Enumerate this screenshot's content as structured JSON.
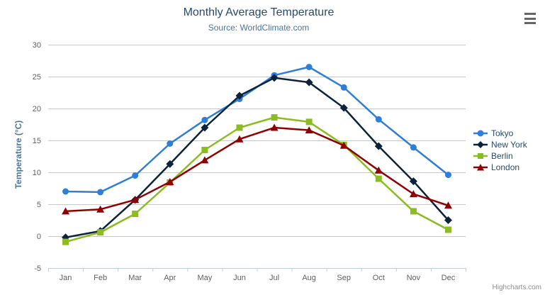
{
  "header": {
    "title": "Monthly Average Temperature",
    "subtitle": "Source: WorldClimate.com"
  },
  "credits_label": "Highcharts.com",
  "export_menu": {
    "icon": "hamburger-icon",
    "bar_color": "#666666"
  },
  "axis_colors": {
    "grid_line": "#c8c8c8",
    "axis_line": "#c0d0e0",
    "tick_label": "#606060",
    "title_text": "#274b6d",
    "subtitle_text": "#4d759e",
    "y_axis_title_text": "#4d759e",
    "legend_text": "#274b6d",
    "credits_text": "#909090"
  },
  "chart_data": {
    "type": "line",
    "title": "Monthly Average Temperature",
    "subtitle": "Source: WorldClimate.com",
    "categories": [
      "Jan",
      "Feb",
      "Mar",
      "Apr",
      "May",
      "Jun",
      "Jul",
      "Aug",
      "Sep",
      "Oct",
      "Nov",
      "Dec"
    ],
    "series": [
      {
        "name": "Tokyo",
        "color": "#2f7ed8",
        "marker": "circle",
        "values": [
          7.0,
          6.9,
          9.5,
          14.5,
          18.2,
          21.5,
          25.2,
          26.5,
          23.3,
          18.3,
          13.9,
          9.6
        ]
      },
      {
        "name": "New York",
        "color": "#0d233a",
        "marker": "diamond",
        "values": [
          -0.2,
          0.8,
          5.7,
          11.3,
          17.0,
          22.0,
          24.8,
          24.1,
          20.1,
          14.1,
          8.6,
          2.5
        ]
      },
      {
        "name": "Berlin",
        "color": "#8bbc21",
        "marker": "square",
        "values": [
          -0.9,
          0.6,
          3.5,
          8.4,
          13.5,
          17.0,
          18.6,
          17.9,
          14.3,
          9.0,
          3.9,
          1.0
        ]
      },
      {
        "name": "London",
        "color": "#910000",
        "marker": "triangle",
        "values": [
          3.9,
          4.2,
          5.7,
          8.5,
          11.9,
          15.2,
          17.0,
          16.6,
          14.2,
          10.3,
          6.6,
          4.8
        ]
      }
    ],
    "xlabel": "",
    "ylabel": "Temperature (°C)",
    "ylim": [
      -5,
      30
    ],
    "y_ticks": [
      -5,
      0,
      5,
      10,
      15,
      20,
      25,
      30
    ],
    "grid": true,
    "legend_position": "right"
  }
}
